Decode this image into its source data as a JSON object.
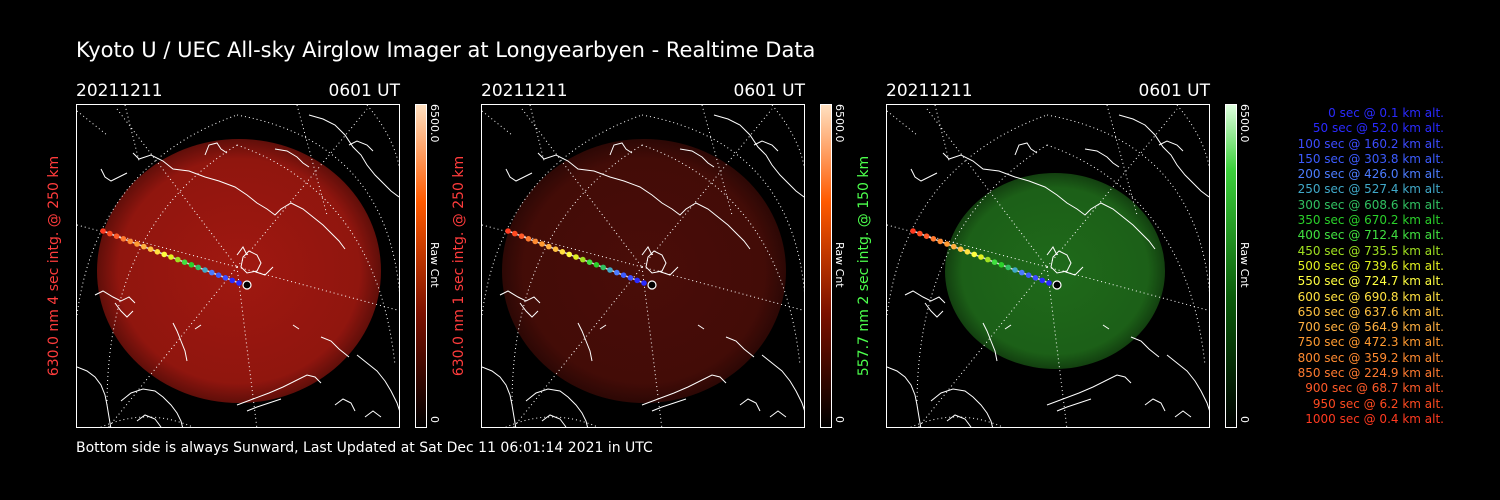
{
  "title": "Kyoto U / UEC All-sky Airglow Imager at Longyearbyen - Realtime Data",
  "footer": "Bottom side is always Sunward, Last Updated at Sat Dec 11 06:01:14 2021 in UTC",
  "colors": {
    "red_label": "#ff3c3c",
    "green_label": "#4cff4c",
    "background": "#000000",
    "map_line": "#ffffff"
  },
  "panels": [
    {
      "date": "20211211",
      "time": "0601 UT",
      "ylabel": "630.0 nm  4 sec intg. @ 250 km",
      "cbar_max": "6500.0",
      "cbar_min": "0",
      "cbar_unit": "Raw Cnt",
      "colormap": "red",
      "intensity": 0.42,
      "glow_color": "#a01810"
    },
    {
      "date": "20211211",
      "time": "0601 UT",
      "ylabel": "630.0 nm  1 sec intg. @ 250 km",
      "cbar_max": "6500.0",
      "cbar_min": "0",
      "cbar_unit": "Raw Cnt",
      "colormap": "red",
      "intensity": 0.14,
      "glow_color": "#4a0d08"
    },
    {
      "date": "20211211",
      "time": "0601 UT",
      "ylabel": "557.7 nm  2 sec intg. @ 150 km",
      "cbar_max": "6500.0",
      "cbar_min": "0",
      "cbar_unit": "Raw Cnt",
      "colormap": "green",
      "intensity": 0.22,
      "glow_color": "#1f6a1a"
    }
  ],
  "legend": [
    {
      "text": "0 sec @    0.1 km alt.",
      "color": "#2a2aff"
    },
    {
      "text": "50 sec @   52.0 km alt.",
      "color": "#2a2aff"
    },
    {
      "text": "100 sec @  160.2 km alt.",
      "color": "#3c4cff"
    },
    {
      "text": "150 sec @  303.8 km alt.",
      "color": "#3c5cff"
    },
    {
      "text": "200 sec @  426.0 km alt.",
      "color": "#4c7cff"
    },
    {
      "text": "250 sec @  527.4 km alt.",
      "color": "#40a8c8"
    },
    {
      "text": "300 sec @  608.6 km alt.",
      "color": "#30c060"
    },
    {
      "text": "350 sec @  670.2 km alt.",
      "color": "#2ad02a"
    },
    {
      "text": "400 sec @  712.4 km alt.",
      "color": "#40e040"
    },
    {
      "text": "450 sec @  735.5 km alt.",
      "color": "#a0e020"
    },
    {
      "text": "500 sec @  739.6 km alt.",
      "color": "#e0f020"
    },
    {
      "text": "550 sec @  724.7 km alt.",
      "color": "#ffff40"
    },
    {
      "text": "600 sec @  690.8 km alt.",
      "color": "#ffe040"
    },
    {
      "text": "650 sec @  637.6 km alt.",
      "color": "#ffc040"
    },
    {
      "text": "700 sec @  564.9 km alt.",
      "color": "#ffb040"
    },
    {
      "text": "750 sec @  472.3 km alt.",
      "color": "#ff9a30"
    },
    {
      "text": "800 sec @  359.2 km alt.",
      "color": "#ff8a30"
    },
    {
      "text": "850 sec @  224.9 km alt.",
      "color": "#ff7a30"
    },
    {
      "text": "900 sec @   68.7 km alt.",
      "color": "#ff5a28"
    },
    {
      "text": "950 sec @    6.2 km alt.",
      "color": "#ff4a20"
    },
    {
      "text": "1000 sec @    0.4 km alt.",
      "color": "#ff3a20"
    }
  ]
}
